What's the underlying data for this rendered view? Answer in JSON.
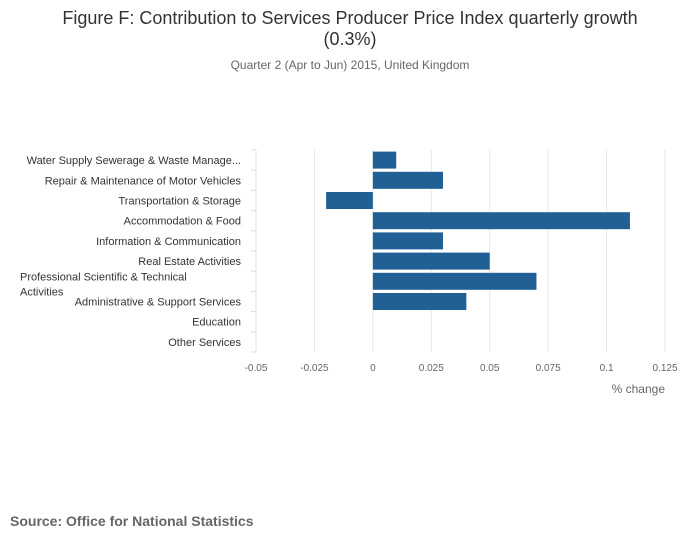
{
  "chart_data": {
    "type": "bar",
    "orientation": "horizontal",
    "title_lines": [
      "Figure F: Contribution to Services Producer Price Index quarterly growth",
      "(0.3%)"
    ],
    "subtitle": "Quarter 2 (Apr to Jun) 2015, United Kingdom",
    "categories": [
      "Water Supply Sewerage & Waste Manage...",
      "Repair & Maintenance of Motor Vehicles",
      "Transportation & Storage",
      "Accommodation & Food",
      "Information & Communication",
      "Real Estate Activities",
      "Professional Scientific & Technical Activities",
      "Administrative & Support Services",
      "Education",
      "Other Services"
    ],
    "values": [
      0.01,
      0.03,
      -0.02,
      0.11,
      0.03,
      0.05,
      0.07,
      0.04,
      0,
      0
    ],
    "xlabel": "% change",
    "ylabel": "",
    "xlim": [
      -0.05,
      0.125
    ],
    "xticks": [
      -0.05,
      -0.025,
      0,
      0.025,
      0.05,
      0.075,
      0.1,
      0.125
    ],
    "xtick_labels": [
      "-0.05",
      "-0.025",
      "0",
      "0.025",
      "0.05",
      "0.075",
      "0.1",
      "0.125"
    ],
    "grid": true,
    "bar_color": "#206095",
    "grid_color": "#e6e6e6"
  },
  "source": "Source: Office for National Statistics"
}
